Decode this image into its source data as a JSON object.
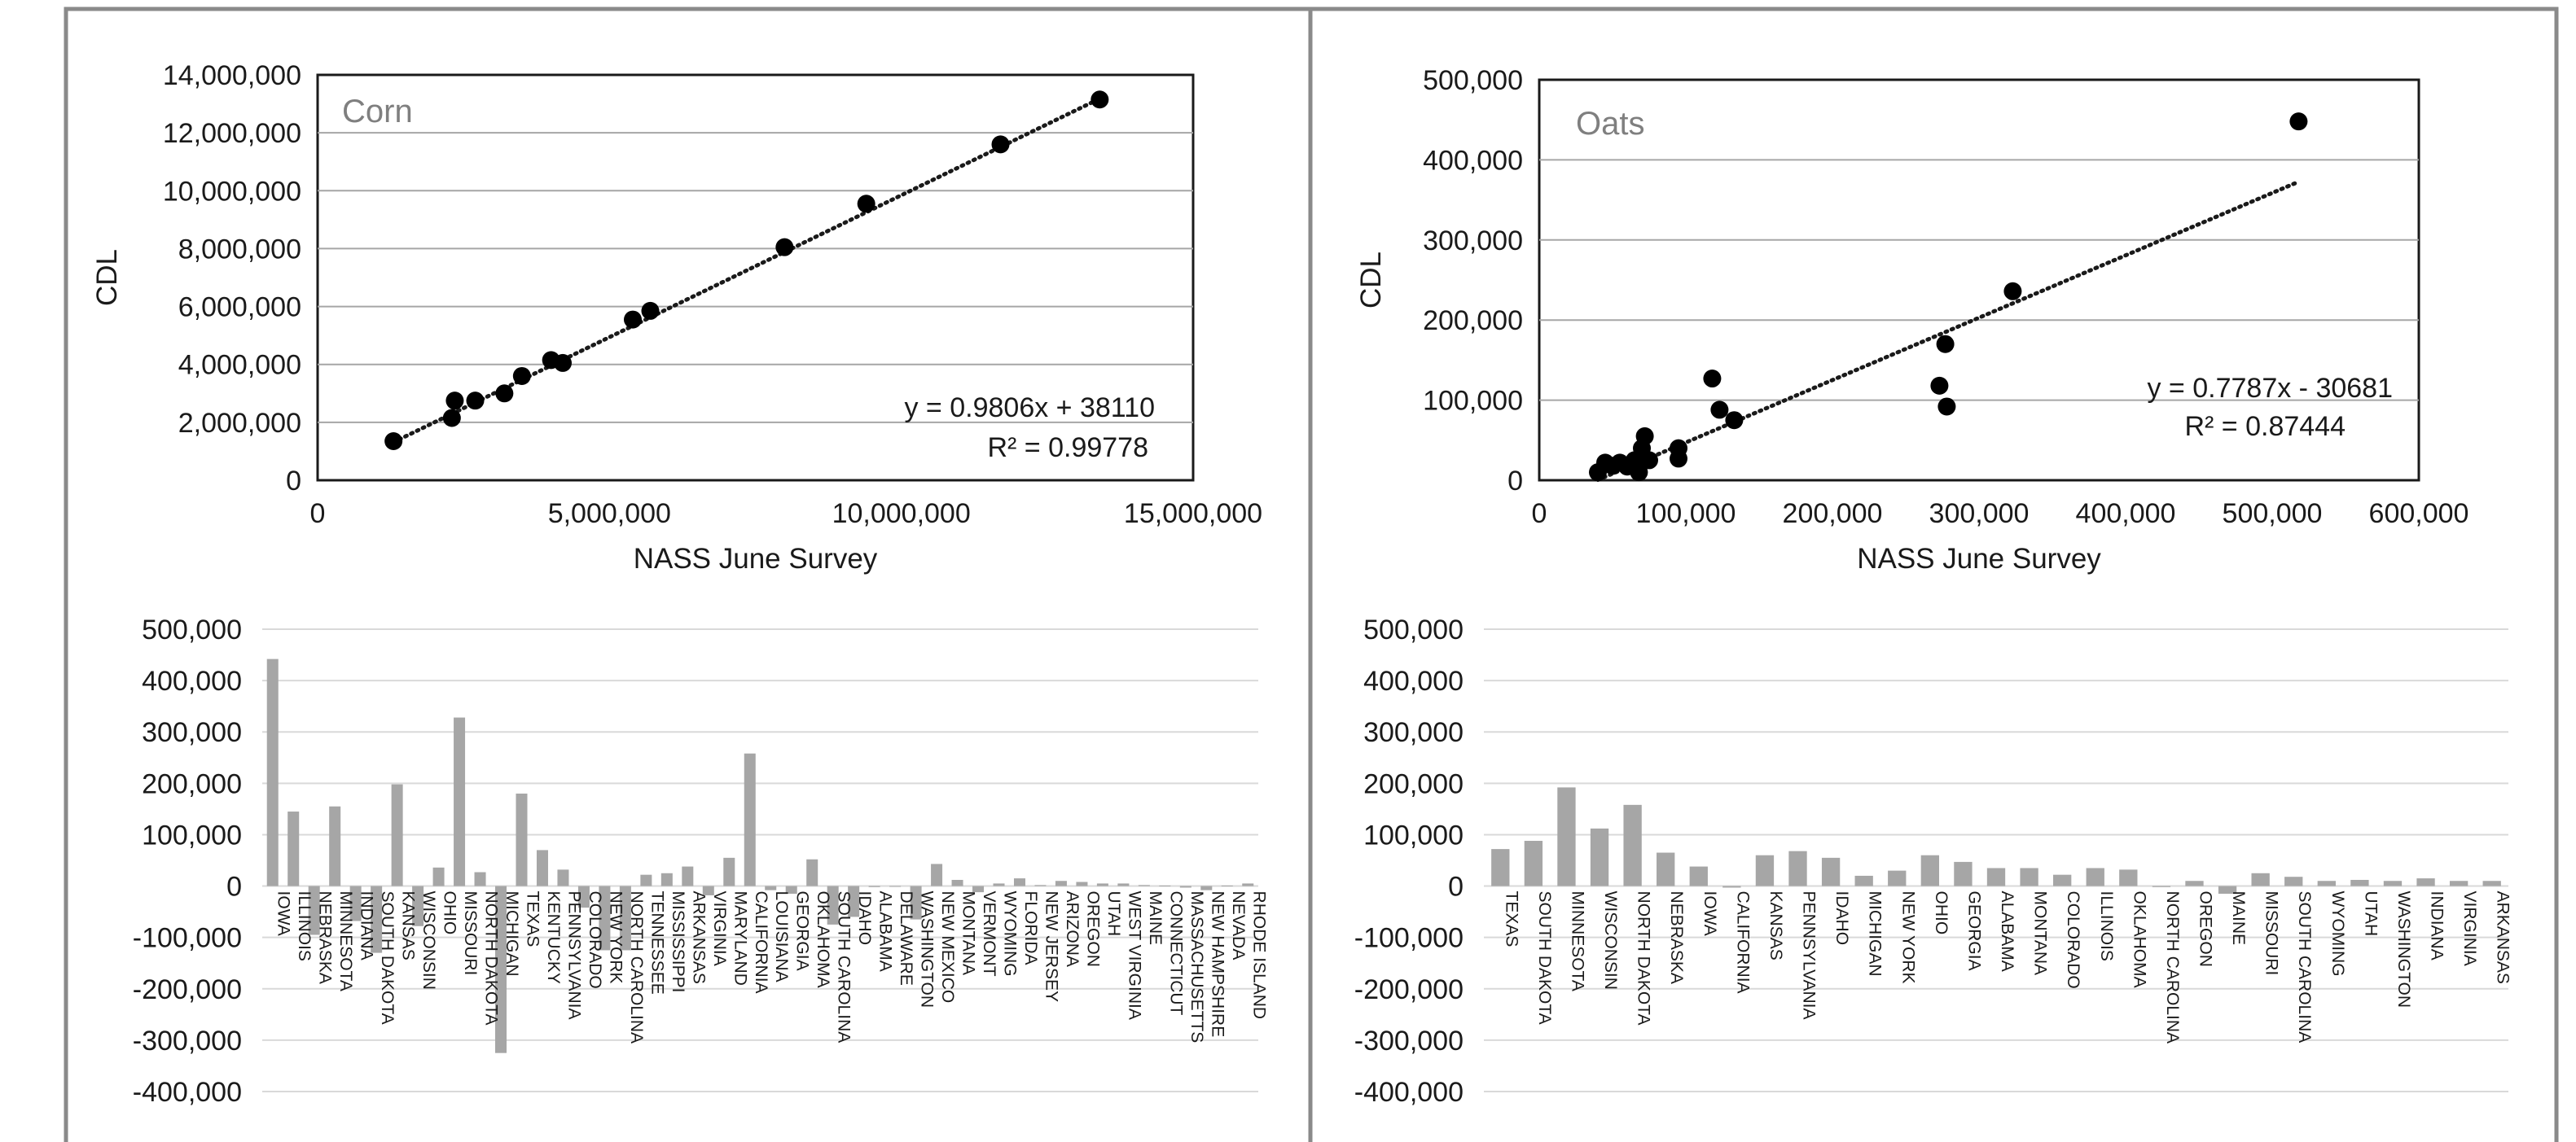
{
  "chart_data": [
    {
      "type": "scatter",
      "title": "Corn",
      "xlabel": "NASS June Survey",
      "ylabel": "CDL",
      "xlim": [
        0,
        15000000
      ],
      "ylim": [
        0,
        14000000
      ],
      "xticks": [
        "0",
        "5,000,000",
        "10,000,000",
        "15,000,000"
      ],
      "yticks": [
        "0",
        "2,000,000",
        "4,000,000",
        "6,000,000",
        "8,000,000",
        "10,000,000",
        "12,000,000",
        "14,000,000"
      ],
      "xtick_values": [
        0,
        5000000,
        10000000,
        15000000
      ],
      "ytick_values": [
        0,
        2000000,
        4000000,
        6000000,
        8000000,
        10000000,
        12000000,
        14000000
      ],
      "points": [
        {
          "x": 1300000,
          "y": 1350000
        },
        {
          "x": 2300000,
          "y": 2150000
        },
        {
          "x": 2350000,
          "y": 2750000
        },
        {
          "x": 2700000,
          "y": 2750000
        },
        {
          "x": 3200000,
          "y": 3000000
        },
        {
          "x": 3500000,
          "y": 3600000
        },
        {
          "x": 4000000,
          "y": 4150000
        },
        {
          "x": 4200000,
          "y": 4050000
        },
        {
          "x": 5400000,
          "y": 5550000
        },
        {
          "x": 5700000,
          "y": 5850000
        },
        {
          "x": 8000000,
          "y": 8050000
        },
        {
          "x": 9400000,
          "y": 9550000
        },
        {
          "x": 11700000,
          "y": 11600000
        },
        {
          "x": 13400000,
          "y": 13150000
        }
      ],
      "trendline": {
        "slope": 0.9806,
        "intercept": 38110,
        "x_range": [
          1300000,
          13400000
        ]
      },
      "equation": "y = 0.9806x + 38110",
      "r2": "R² = 0.99778",
      "grid": true
    },
    {
      "type": "scatter",
      "title": "Oats",
      "xlabel": "NASS June Survey",
      "ylabel": "CDL",
      "xlim": [
        0,
        600000
      ],
      "ylim": [
        0,
        500000
      ],
      "xticks": [
        "0",
        "100,000",
        "200,000",
        "300,000",
        "400,000",
        "500,000",
        "600,000"
      ],
      "yticks": [
        "0",
        "100,000",
        "200,000",
        "300,000",
        "400,000",
        "500,000"
      ],
      "xtick_values": [
        0,
        100000,
        200000,
        300000,
        400000,
        500000,
        600000
      ],
      "ytick_values": [
        0,
        100000,
        200000,
        300000,
        400000,
        500000
      ],
      "points": [
        {
          "x": 40000,
          "y": 10000
        },
        {
          "x": 45000,
          "y": 22000
        },
        {
          "x": 50000,
          "y": 18000
        },
        {
          "x": 55000,
          "y": 22000
        },
        {
          "x": 60000,
          "y": 17000
        },
        {
          "x": 65000,
          "y": 25000
        },
        {
          "x": 68000,
          "y": 10000
        },
        {
          "x": 70000,
          "y": 40000
        },
        {
          "x": 72000,
          "y": 55000
        },
        {
          "x": 75000,
          "y": 25000
        },
        {
          "x": 95000,
          "y": 27000
        },
        {
          "x": 95000,
          "y": 40000
        },
        {
          "x": 118000,
          "y": 127000
        },
        {
          "x": 123000,
          "y": 88000
        },
        {
          "x": 133000,
          "y": 75000
        },
        {
          "x": 273000,
          "y": 118000
        },
        {
          "x": 277000,
          "y": 170000
        },
        {
          "x": 278000,
          "y": 92000
        },
        {
          "x": 323000,
          "y": 236000
        },
        {
          "x": 518000,
          "y": 448000
        }
      ],
      "trendline": {
        "slope": 0.7787,
        "intercept": -30681,
        "x_range": [
          40000,
          518000
        ]
      },
      "equation": "y = 0.7787x - 30681",
      "r2": "R² = 0.87444",
      "grid": true
    },
    {
      "type": "bar",
      "ylim": [
        -400000,
        500000
      ],
      "yticks": [
        "-400,000",
        "-300,000",
        "-200,000",
        "-100,000",
        "0",
        "100,000",
        "200,000",
        "300,000",
        "400,000",
        "500,000"
      ],
      "ytick_values": [
        -400000,
        -300000,
        -200000,
        -100000,
        0,
        100000,
        200000,
        300000,
        400000,
        500000
      ],
      "categories": [
        "IOWA",
        "ILLINOIS",
        "NEBRASKA",
        "MINNESOTA",
        "INDIANA",
        "SOUTH DAKOTA",
        "KANSAS",
        "WISCONSIN",
        "OHIO",
        "MISSOURI",
        "NORTH DAKOTA",
        "MICHIGAN",
        "TEXAS",
        "KENTUCKY",
        "PENNSYLVANIA",
        "COLORADO",
        "NEW YORK",
        "NORTH CAROLINA",
        "TENNESSEE",
        "MISSISSIPPI",
        "ARKANSAS",
        "VIRGINIA",
        "MARYLAND",
        "CALIFORNIA",
        "LOUISIANA",
        "GEORGIA",
        "OKLAHOMA",
        "SOUTH CAROLINA",
        "IDAHO",
        "ALABAMA",
        "DELAWARE",
        "WASHINGTON",
        "NEW MEXICO",
        "MONTANA",
        "VERMONT",
        "WYOMING",
        "FLORIDA",
        "NEW JERSEY",
        "ARIZONA",
        "OREGON",
        "UTAH",
        "WEST VIRGINIA",
        "MAINE",
        "CONNECTICUT",
        "MASSACHUSETTS",
        "NEW HAMPSHIRE",
        "NEVADA",
        "RHODE ISLAND"
      ],
      "values": [
        442000,
        145000,
        -95000,
        155000,
        -68000,
        -130000,
        198000,
        -78000,
        36000,
        328000,
        27000,
        -325000,
        180000,
        70000,
        32000,
        -42000,
        -125000,
        -125000,
        22000,
        25000,
        38000,
        -18000,
        55000,
        258000,
        -8000,
        -15000,
        52000,
        -75000,
        -60000,
        -2000,
        -1000,
        -65000,
        43000,
        12000,
        -12000,
        5000,
        15000,
        2000,
        10000,
        8000,
        5000,
        5000,
        2000,
        1000,
        -3000,
        -8000,
        1000,
        5000
      ],
      "grid": true
    },
    {
      "type": "bar",
      "ylim": [
        -400000,
        500000
      ],
      "yticks": [
        "-400,000",
        "-300,000",
        "-200,000",
        "-100,000",
        "0",
        "100,000",
        "200,000",
        "300,000",
        "400,000",
        "500,000"
      ],
      "ytick_values": [
        -400000,
        -300000,
        -200000,
        -100000,
        0,
        100000,
        200000,
        300000,
        400000,
        500000
      ],
      "categories": [
        "TEXAS",
        "SOUTH DAKOTA",
        "MINNESOTA",
        "WISCONSIN",
        "NORTH DAKOTA",
        "NEBRASKA",
        "IOWA",
        "CALIFORNIA",
        "KANSAS",
        "PENNSYLVANIA",
        "IDAHO",
        "MICHIGAN",
        "NEW YORK",
        "OHIO",
        "GEORGIA",
        "ALABAMA",
        "MONTANA",
        "COLORADO",
        "ILLINOIS",
        "OKLAHOMA",
        "NORTH CAROLINA",
        "OREGON",
        "MAINE",
        "MISSOURI",
        "SOUTH CAROLINA",
        "WYOMING",
        "UTAH",
        "WASHINGTON",
        "INDIANA",
        "VIRGINIA",
        "ARKANSAS"
      ],
      "values": [
        72000,
        88000,
        192000,
        112000,
        158000,
        65000,
        38000,
        -3000,
        60000,
        68000,
        55000,
        20000,
        30000,
        60000,
        47000,
        35000,
        35000,
        22000,
        35000,
        32000,
        -2000,
        10000,
        -15000,
        25000,
        18000,
        10000,
        12000,
        10000,
        15000,
        10000,
        10000
      ],
      "grid": true
    }
  ]
}
